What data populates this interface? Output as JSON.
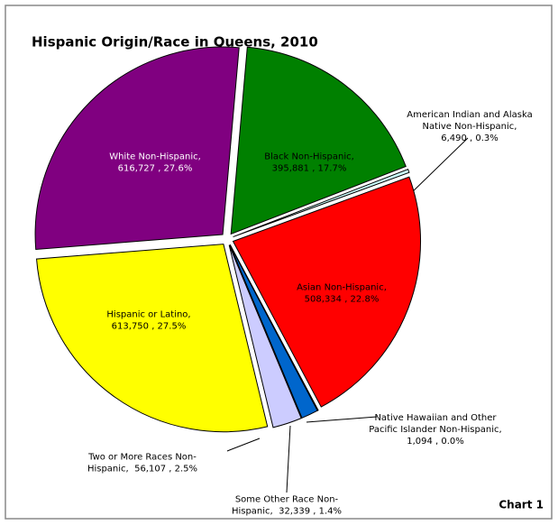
{
  "chart_data": {
    "type": "pie",
    "title": "Hispanic Origin/Race in Queens, 2010",
    "caption": "Chart 1",
    "categories": [
      "Black Non-Hispanic",
      "American Indian and Alaska Native Non-Hispanic",
      "Asian Non-Hispanic",
      "Native Hawaiian and Other Pacific Islander Non-Hispanic",
      "Some Other Race Non-Hispanic",
      "Two or More Races Non-Hispanic",
      "Hispanic or Latino",
      "White Non-Hispanic"
    ],
    "values": [
      395881,
      6490,
      508334,
      1094,
      32339,
      56107,
      613750,
      616727
    ],
    "value_labels": [
      "Black Non-Hispanic, 395,881 , 17.7%",
      "American Indian and Alaska Native Non-Hispanic, 6,490 , 0.3%",
      "Asian Non-Hispanic, 508,334 , 22.8%",
      "Native Hawaiian and Other Pacific Islander Non-Hispanic, 1,094 , 0.0%",
      "Some Other Race Non-Hispanic,  32,339 , 1.4%",
      "Two or More Races Non-Hispanic,  56,107 , 2.5%",
      "Hispanic or Latino, 613,750 , 27.5%",
      "White Non-Hispanic, 616,727 , 27.6%"
    ],
    "colors": [
      "#008000",
      "#ccffff",
      "#ff0000",
      "#993366",
      "#0066cc",
      "#ccccff",
      "#ffff00",
      "#800080"
    ]
  }
}
